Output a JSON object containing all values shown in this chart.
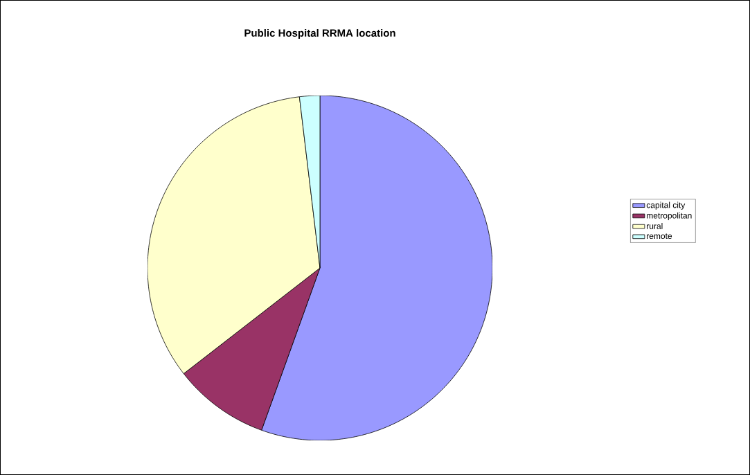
{
  "chart_data": {
    "type": "pie",
    "title": "Public Hospital RRMA location",
    "categories": [
      "capital city",
      "metropolitan",
      "rural",
      "remote"
    ],
    "values": [
      55.5,
      9,
      33.6,
      1.9
    ],
    "colors": [
      "#9999ff",
      "#993366",
      "#ffffcc",
      "#ccffff"
    ],
    "legend": "right"
  }
}
